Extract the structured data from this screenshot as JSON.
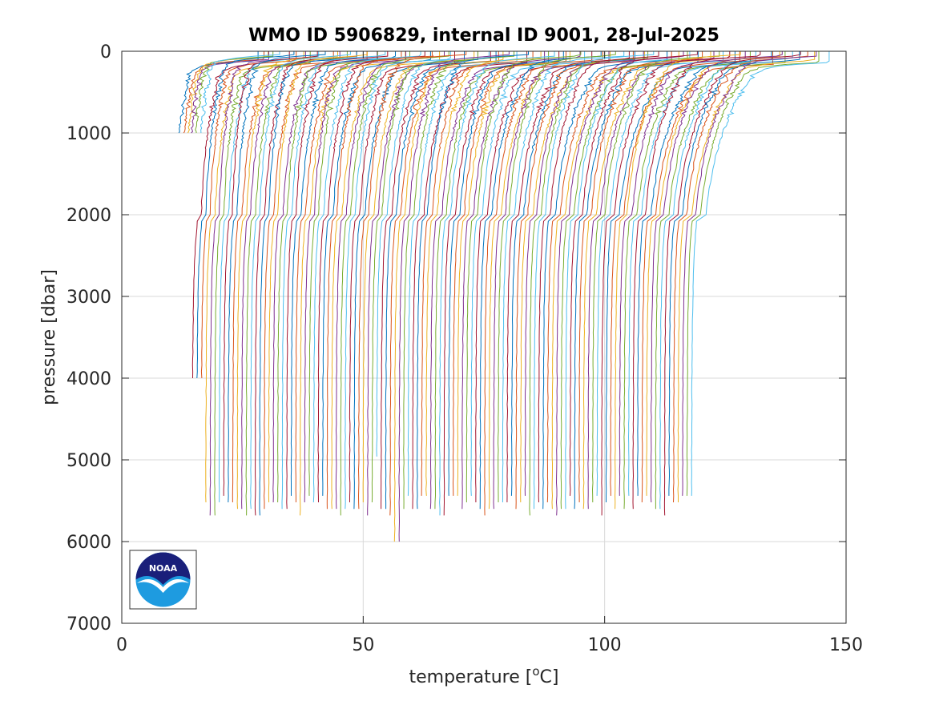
{
  "chart_data": {
    "type": "line",
    "title": "WMO ID 5906829, internal ID 9001, 28-Jul-2025",
    "xlabel_prefix": "temperature [",
    "xlabel_sup": "o",
    "xlabel_suffix": "C]",
    "ylabel": "pressure [dbar]",
    "xlim": [
      0,
      150
    ],
    "ylim": [
      0,
      7000
    ],
    "y_reversed": true,
    "grid": true,
    "xticks": [
      0,
      50,
      100,
      150
    ],
    "yticks": [
      0,
      1000,
      2000,
      3000,
      4000,
      5000,
      6000,
      7000
    ],
    "xtick_labels": [
      "0",
      "50",
      "100",
      "150"
    ],
    "ytick_labels": [
      "0",
      "1000",
      "2000",
      "3000",
      "4000",
      "5000",
      "6000",
      "7000"
    ],
    "waterfall": {
      "profile_count": 118,
      "x_offset_step": 1.0,
      "surface_temperature_first": 28.0,
      "surface_temperature_last": 146.0,
      "deep_temperature_first": 9.0,
      "deep_temperature_last": 118.0,
      "typical_max_pressure": 5600,
      "max_pressure_range": [
        1000,
        6000
      ]
    },
    "colors": [
      "#0072bd",
      "#d95319",
      "#edb120",
      "#7e2f8e",
      "#77ac30",
      "#4dbeee",
      "#a2142f"
    ]
  },
  "logo": {
    "text": "NOAA"
  }
}
